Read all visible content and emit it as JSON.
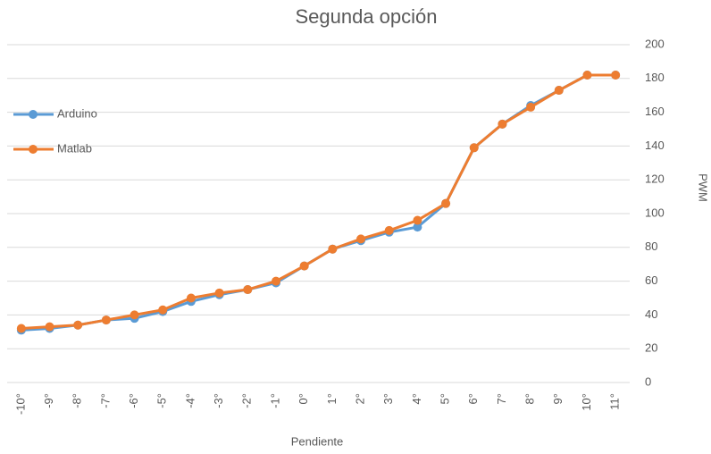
{
  "chart_data": {
    "type": "line",
    "title": "Segunda opción",
    "x_label": "Pendiente",
    "y_label": "PWM",
    "categories": [
      "-10°",
      "-9°",
      "-8°",
      "-7°",
      "-6°",
      "-5°",
      "-4°",
      "-3°",
      "-2°",
      "-1°",
      "0°",
      "1°",
      "2°",
      "3°",
      "4°",
      "5°",
      "6°",
      "7°",
      "8°",
      "9°",
      "10°",
      "11°"
    ],
    "series": [
      {
        "name": "Arduino",
        "color": "#5b9bd5",
        "values": [
          31,
          32,
          34,
          37,
          38,
          42,
          48,
          52,
          55,
          59,
          69,
          79,
          84,
          89,
          92,
          106,
          139,
          153,
          164,
          173,
          182,
          182
        ]
      },
      {
        "name": "Matlab",
        "color": "#ed7d31",
        "values": [
          32,
          33,
          34,
          37,
          40,
          43,
          50,
          53,
          55,
          60,
          69,
          79,
          85,
          90,
          96,
          106,
          139,
          153,
          163,
          173,
          182,
          182
        ]
      }
    ],
    "ylim": [
      0,
      200
    ],
    "yticks": [
      0,
      20,
      40,
      60,
      80,
      100,
      120,
      140,
      160,
      180,
      200
    ],
    "y_axis_side": "right",
    "grid": true,
    "legend": "left"
  }
}
